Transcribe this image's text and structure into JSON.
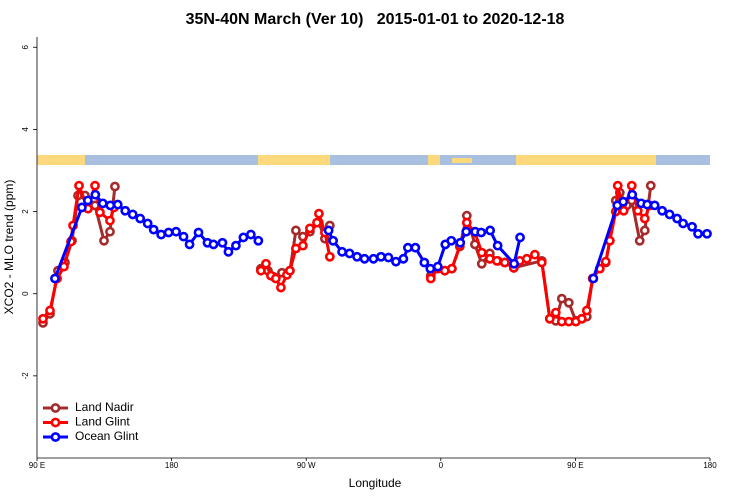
{
  "chart_data": {
    "type": "line",
    "title": "35N-40N March (Ver 10)   2015-01-01 to 2020-12-18",
    "x_label": "Longitude",
    "y_label": "XCO2 - MLO trend (ppm)",
    "xlim": [
      90,
      540
    ],
    "xticks": [
      {
        "value": 90,
        "label": "90 E"
      },
      180,
      {
        "value": 270,
        "label": "90 W"
      },
      {
        "value": 360,
        "label": "0"
      },
      {
        "value": 450,
        "label": "90 E"
      },
      {
        "value": 540,
        "label": "180"
      }
    ],
    "ylim": [
      -4,
      6.25
    ],
    "yticks": [
      -2,
      0,
      2,
      4,
      6
    ],
    "legend": "bottom-left",
    "series": [
      {
        "name": "Land Nadir",
        "color": "#a52a2a",
        "x": [
          94.0,
          98.7,
          104.0,
          108.7,
          113.4,
          117.4,
          122.1,
          128.8,
          134.8,
          138.8,
          142.1,
          200,
          239.7,
          244.4,
          248.4,
          253.8,
          259.1,
          263.1,
          267.8,
          272.5,
          278.5,
          282.5,
          285.8,
          320,
          353.3,
          358.0,
          362.7,
          367.4,
          372.7,
          377.4,
          382.8,
          387.4,
          392.8,
          398.1,
          402.8,
          408.8,
          427.5,
          432.9,
          436.9,
          440.9,
          445.6,
          450.3,
          454.3,
          457.6,
          461.6,
          466.3,
          470.3,
          473.0,
          477.0,
          479.7,
          484.4,
          487.7,
          493.0,
          496.4,
          500.4
        ],
        "values": [
          -0.71,
          -0.49,
          0.56,
          0.76,
          1.29,
          2.39,
          2.39,
          2.15,
          1.29,
          1.51,
          2.61,
          null,
          0.61,
          0.56,
          0.41,
          0.51,
          0.56,
          1.54,
          1.39,
          1.51,
          1.73,
          1.34,
          1.66,
          null,
          0.44,
          0.61,
          0.56,
          0.61,
          1.15,
          1.9,
          1.2,
          0.73,
          0.98,
          0.8,
          0.76,
          0.63,
          0.8,
          -0.61,
          -0.66,
          -0.12,
          -0.22,
          -0.66,
          -0.61,
          -0.56,
          0.37,
          0.61,
          0.76,
          1.29,
          2.27,
          2.46,
          2.15,
          2.27,
          1.29,
          1.54,
          2.63
        ]
      },
      {
        "name": "Land Glint",
        "color": "#ff0000",
        "x": [
          94.0,
          98.7,
          103.4,
          108.0,
          112.7,
          114.1,
          118.1,
          124.1,
          128.8,
          132.1,
          138.8,
          141.5,
          200,
          239.7,
          243.1,
          246.4,
          249.7,
          253.1,
          257.1,
          259.1,
          263.1,
          267.8,
          272.5,
          277.2,
          278.5,
          282.5,
          285.8,
          320,
          353.3,
          358.0,
          362.7,
          367.4,
          372.7,
          377.4,
          382.8,
          387.4,
          392.8,
          397.5,
          402.8,
          408.8,
          412.8,
          417.5,
          422.9,
          427.5,
          432.9,
          436.9,
          440.9,
          445.6,
          450.3,
          454.3,
          457.6,
          461.6,
          466.3,
          470.3,
          473.0,
          477.0,
          478.3,
          482.3,
          487.7,
          491.7,
          496.4,
          499.7
        ],
        "values": [
          -0.61,
          -0.41,
          0.37,
          0.66,
          1.27,
          1.66,
          2.63,
          2.07,
          2.63,
          1.98,
          1.78,
          2.1,
          null,
          0.56,
          0.73,
          0.44,
          0.37,
          0.15,
          0.46,
          0.56,
          1.1,
          1.17,
          1.59,
          1.73,
          1.95,
          1.49,
          0.9,
          null,
          0.37,
          0.61,
          0.56,
          0.61,
          1.17,
          1.73,
          1.49,
          1.0,
          0.85,
          0.8,
          0.76,
          0.63,
          0.8,
          0.85,
          0.95,
          0.76,
          -0.61,
          -0.46,
          -0.68,
          -0.68,
          -0.68,
          -0.61,
          -0.41,
          0.37,
          0.61,
          0.78,
          1.29,
          2.0,
          2.63,
          2.02,
          2.63,
          2.02,
          1.83,
          2.15
        ]
      },
      {
        "name": "Ocean Glint",
        "color": "#0000ff",
        "x": [
          102,
          120,
          124,
          129,
          134,
          139,
          144,
          149,
          154,
          159,
          164,
          168,
          173,
          178,
          183,
          188,
          192,
          198,
          204,
          208,
          214,
          218,
          223,
          228,
          233,
          238,
          260,
          285,
          288,
          294,
          299,
          304,
          309,
          315,
          320,
          325,
          330,
          335,
          338,
          343,
          349,
          353,
          358,
          363,
          367,
          373,
          377,
          383,
          387,
          393,
          398,
          409,
          413,
          440,
          462,
          478,
          482,
          488,
          494,
          498,
          503,
          508,
          513,
          518,
          522,
          528,
          532,
          538
        ],
        "values": [
          0.37,
          2.1,
          2.27,
          2.41,
          2.2,
          2.15,
          2.17,
          2.02,
          1.93,
          1.83,
          1.71,
          1.56,
          1.44,
          1.49,
          1.51,
          1.39,
          1.2,
          1.49,
          1.24,
          1.2,
          1.24,
          1.02,
          1.17,
          1.37,
          1.44,
          1.29,
          null,
          1.54,
          1.29,
          1.02,
          0.98,
          0.9,
          0.85,
          0.85,
          0.9,
          0.88,
          0.78,
          0.85,
          1.12,
          1.12,
          0.76,
          0.61,
          0.66,
          1.2,
          1.29,
          1.24,
          1.51,
          1.51,
          1.49,
          1.54,
          1.17,
          0.73,
          1.37,
          null,
          0.37,
          2.15,
          2.24,
          2.41,
          2.2,
          2.17,
          2.15,
          2.02,
          1.93,
          1.83,
          1.71,
          1.63,
          1.46,
          1.46
        ]
      }
    ]
  }
}
